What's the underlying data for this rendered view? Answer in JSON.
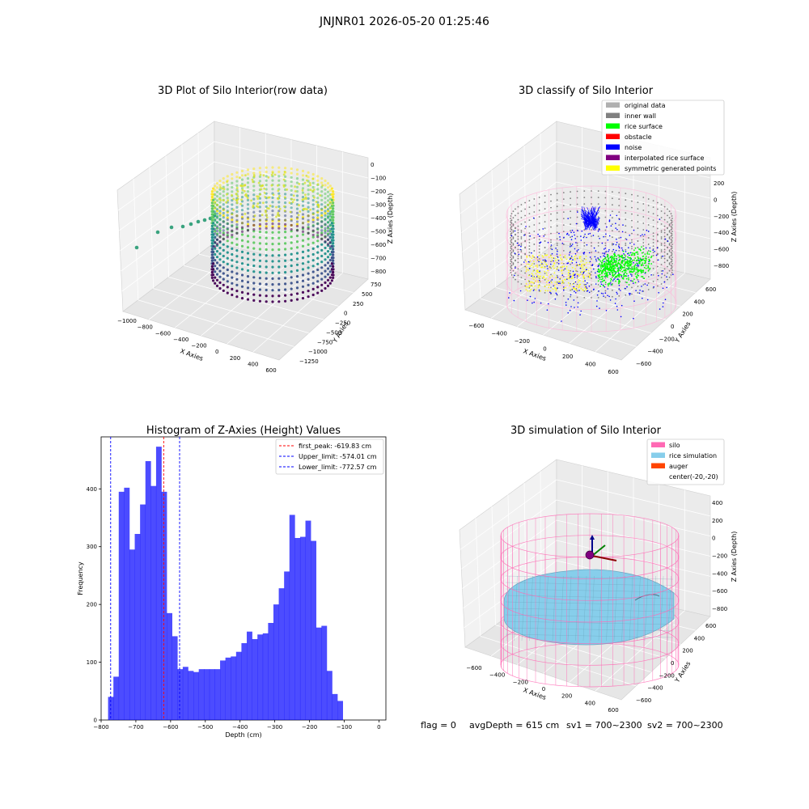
{
  "figure": {
    "suptitle": "JNJNR01 2026-05-20 01:25:46",
    "footer": {
      "flag": "flag = 0",
      "avg": "avgDepth = 615 cm",
      "sv1": "sv1 = 700~2300",
      "sv2": "sv2 = 700~2300"
    }
  },
  "panels": {
    "raw": {
      "title": "3D Plot of Silo Interior(row data)",
      "xlabel": "X Axies",
      "ylabel": "Y Axies",
      "zlabel": "Z Axies (Depth)",
      "xticks": [
        "−1000",
        "−800",
        "−600",
        "−400",
        "−200",
        "0",
        "200",
        "400",
        "600"
      ],
      "yticks": [
        "750",
        "500",
        "250",
        "0",
        "−250",
        "−500",
        "−750",
        "−1000",
        "−1250"
      ],
      "zticks": [
        "0",
        "−100",
        "−200",
        "−300",
        "−400",
        "−500",
        "−600",
        "−700",
        "−800"
      ],
      "colormap": [
        "#440154",
        "#3b528b",
        "#21918c",
        "#5ec962",
        "#fde725"
      ]
    },
    "classify": {
      "title": "3D classify of Silo Interior",
      "xlabel": "X Axies",
      "ylabel": "Y Axies",
      "zlabel": "Z Axies (Depth)",
      "xticks": [
        "−600",
        "−400",
        "−200",
        "0",
        "200",
        "400",
        "600"
      ],
      "yticks": [
        "600",
        "400",
        "200",
        "0",
        "−200",
        "−400",
        "−600"
      ],
      "zticks": [
        "200",
        "0",
        "−200",
        "−400",
        "−600",
        "−800"
      ],
      "legend": [
        {
          "label": "original data",
          "color": "#b0b0b0"
        },
        {
          "label": "inner wall",
          "color": "#808080"
        },
        {
          "label": "rice surface",
          "color": "#00ff00"
        },
        {
          "label": "obstacle",
          "color": "#ff0000"
        },
        {
          "label": "noise",
          "color": "#0000ff"
        },
        {
          "label": "interpolated rice surface",
          "color": "#800080"
        },
        {
          "label": "symmetric generated points",
          "color": "#ffff00"
        }
      ]
    },
    "simulation": {
      "title": "3D simulation of Silo Interior",
      "xlabel": "X Axies",
      "ylabel": "Y Axies",
      "zlabel": "Z Axies (Depth)",
      "xticks": [
        "−600",
        "−400",
        "−200",
        "0",
        "200",
        "400",
        "600"
      ],
      "yticks": [
        "600",
        "400",
        "200",
        "0",
        "−200",
        "−400",
        "−600"
      ],
      "zticks": [
        "400",
        "200",
        "0",
        "−200",
        "−400",
        "−600",
        "−800"
      ],
      "legend": [
        {
          "label": "silo",
          "color": "#ff69b4"
        },
        {
          "label": "rice simulation",
          "color": "#87ceeb"
        },
        {
          "label": "auger",
          "color": "#ff4500"
        },
        {
          "label": "center(-20,-20)",
          "color": ""
        }
      ]
    }
  },
  "chart_data": {
    "type": "bar",
    "title": "Histogram of Z-Axies (Height) Values",
    "xlabel": "Depth (cm)",
    "ylabel": "Frequency",
    "xlim": [
      -800,
      20
    ],
    "ylim": [
      0,
      490
    ],
    "xticks": [
      -800,
      -700,
      -600,
      -500,
      -400,
      -300,
      -200,
      -100,
      0
    ],
    "yticks": [
      0,
      100,
      200,
      300,
      400
    ],
    "bar_color": "#0000ff",
    "bin_start": -780,
    "bin_width": 15.36,
    "values": [
      40,
      75,
      395,
      402,
      295,
      322,
      373,
      448,
      405,
      473,
      395,
      185,
      145,
      88,
      92,
      85,
      83,
      88,
      88,
      88,
      88,
      103,
      108,
      110,
      118,
      133,
      153,
      140,
      148,
      150,
      168,
      200,
      228,
      257,
      355,
      315,
      317,
      345,
      310,
      160,
      163,
      85,
      45,
      33
    ],
    "vlines": [
      {
        "label": "first_peak: -619.83 cm",
        "value": -619.83,
        "color": "#ff0000"
      },
      {
        "label": "Upper_limit: -574.01 cm",
        "value": -574.01,
        "color": "#0000ff"
      },
      {
        "label": "Lower_limit: -772.57 cm",
        "value": -772.57,
        "color": "#0000ff"
      }
    ],
    "legend_position": "top-right"
  }
}
